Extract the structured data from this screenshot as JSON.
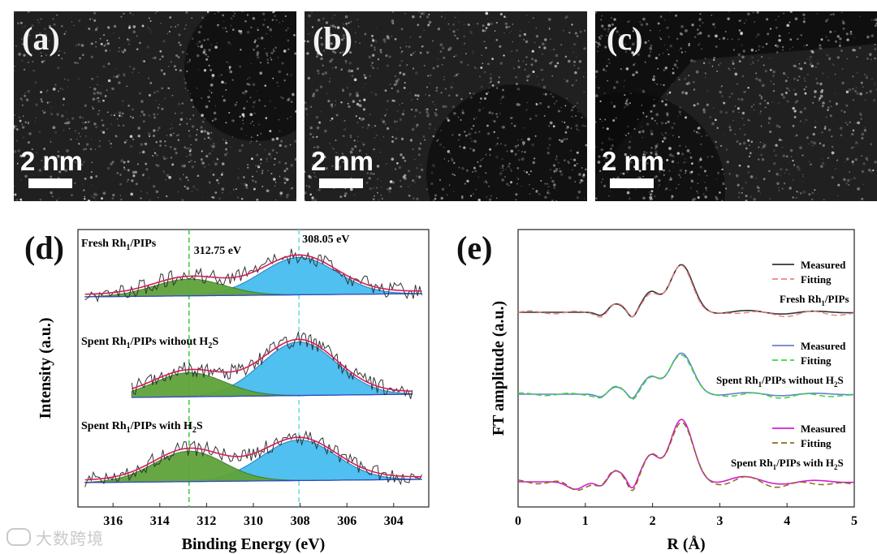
{
  "panels": {
    "a": {
      "letter": "(a)",
      "scale": "2 nm"
    },
    "b": {
      "letter": "(b)",
      "scale": "2 nm"
    },
    "c": {
      "letter": "(c)",
      "scale": "2 nm"
    }
  },
  "watermark": "大数跨境",
  "chart_data": [
    {
      "panel": "(d)",
      "type": "line",
      "xlabel": "Binding Energy (eV)",
      "ylabel": "Intensity (a.u.)",
      "xlim": [
        317.5,
        302.5
      ],
      "x_reversed": true,
      "xticks": [
        316,
        314,
        312,
        310,
        308,
        306,
        304
      ],
      "reference_lines": [
        {
          "x": 312.75,
          "label": "312.75 eV",
          "color": "#33cc33"
        },
        {
          "x": 308.05,
          "label": "308.05 eV",
          "color": "#66dddd"
        }
      ],
      "series": [
        {
          "name": "Fresh Rh1/PIPs",
          "label_main": "Fresh Rh",
          "label_sub": "1",
          "label_rest": "/PIPs",
          "x_range": [
            317.2,
            302.8
          ],
          "peaks": [
            {
              "center": 312.75,
              "height": 0.45
            },
            {
              "center": 308.05,
              "height": 1.0
            }
          ]
        },
        {
          "name": "Spent Rh1/PIPs without H2S",
          "label_main": "Spent Rh",
          "label_sub": "1",
          "label_rest": "/PIPs without H",
          "label_sub2": "2",
          "label_end": "S",
          "x_range": [
            315.2,
            303.2
          ],
          "peaks": [
            {
              "center": 312.75,
              "height": 0.45
            },
            {
              "center": 308.05,
              "height": 1.0
            }
          ]
        },
        {
          "name": "Spent Rh1/PIPs with H2S",
          "label_main": "Spent Rh",
          "label_sub": "1",
          "label_rest": "/PIPs with H",
          "label_sub2": "2",
          "label_end": "S",
          "x_range": [
            317.2,
            302.8
          ],
          "peaks": [
            {
              "center": 312.75,
              "height": 0.75
            },
            {
              "center": 308.05,
              "height": 1.0
            }
          ]
        }
      ]
    },
    {
      "panel": "(e)",
      "type": "line",
      "xlabel": "R (Å)",
      "ylabel": "FT amplitude (a.u.)",
      "xlim": [
        0,
        5
      ],
      "xticks": [
        0,
        1,
        2,
        3,
        4,
        5
      ],
      "series": [
        {
          "name": "Fresh Rh1/PIPs",
          "label_main": "Fresh Rh",
          "label_sub": "1",
          "label_rest": "/PIPs",
          "measured_label": "Measured",
          "fitting_label": "Fitting",
          "measured_color": "#333333",
          "fitting_color": "#f08080"
        },
        {
          "name": "Spent Rh1/PIPs without H2S",
          "label_main": "Spent Rh",
          "label_sub": "1",
          "label_rest": "/PIPs without H",
          "label_sub2": "2",
          "label_end": "S",
          "measured_label": "Measured",
          "fitting_label": "Fitting",
          "measured_color": "#6a7fd0",
          "fitting_color": "#33dd33"
        },
        {
          "name": "Spent Rh1/PIPs with H2S",
          "label_main": "Spent Rh",
          "label_sub": "1",
          "label_rest": "/PIPs with H",
          "label_sub2": "2",
          "label_end": "S",
          "measured_label": "Measured",
          "fitting_label": "Fitting",
          "measured_color": "#d01fd0",
          "fitting_color": "#8b6a1a"
        }
      ]
    }
  ]
}
